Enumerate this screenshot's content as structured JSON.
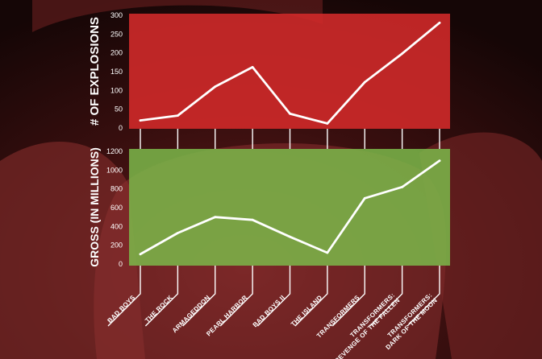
{
  "chart_data": {
    "type": "line",
    "categories": [
      "BAD BOYS",
      "THE ROCK",
      "ARMAGEDDON",
      "PEARL HARBOR",
      "BAD BOYS II",
      "THE ISLAND",
      "TRANSFORMERS",
      [
        "TRANSFORMERS:",
        "REVENGE OF THE FALLEN"
      ],
      [
        "TRANSFORMERS:",
        "DARK OF THE MOON"
      ]
    ],
    "panels": [
      {
        "ylabel": "# OF EXPLOSIONS",
        "ylim": [
          0,
          300
        ],
        "yticks": [
          0,
          50,
          100,
          150,
          200,
          250,
          300
        ],
        "values": [
          20,
          33,
          110,
          162,
          38,
          12,
          122,
          198,
          280
        ],
        "background": "#d42a2a"
      },
      {
        "ylabel": "GROSS (IN MILLIONS)",
        "ylim": [
          0,
          1200
        ],
        "yticks": [
          0,
          200,
          400,
          600,
          800,
          1000,
          1200
        ],
        "values": [
          105,
          330,
          500,
          470,
          290,
          120,
          700,
          820,
          1100
        ],
        "background": "#7bb84a"
      }
    ]
  }
}
